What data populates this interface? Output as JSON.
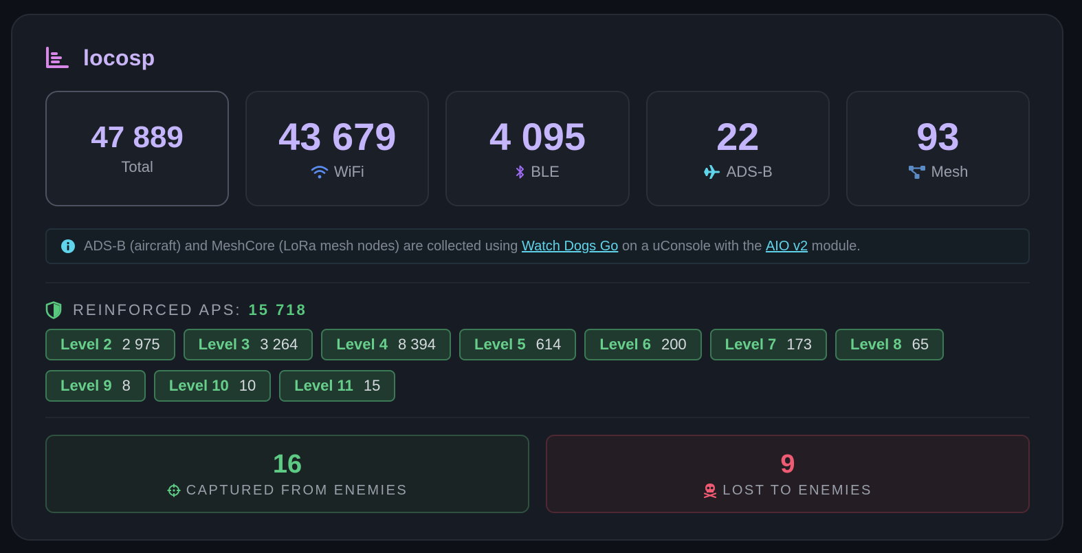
{
  "header": {
    "title": "locosp",
    "icon": "bar-chart-icon"
  },
  "stats": [
    {
      "key": "total",
      "value": "47 889",
      "label": "Total"
    },
    {
      "key": "wifi",
      "value": "43 679",
      "label": "WiFi",
      "icon": "wifi-icon",
      "color": "#5b8df0"
    },
    {
      "key": "ble",
      "value": "4 095",
      "label": "BLE",
      "icon": "bluetooth-icon",
      "color": "#9d6cf2"
    },
    {
      "key": "adsb",
      "value": "22",
      "label": "ADS-B",
      "icon": "plane-icon",
      "color": "#5fd4ea"
    },
    {
      "key": "mesh",
      "value": "93",
      "label": "Mesh",
      "icon": "network-icon",
      "color": "#5b8bc4"
    }
  ],
  "info": {
    "text_before": "ADS-B (aircraft) and MeshCore (LoRa mesh nodes) are collected using ",
    "link1": "Watch Dogs Go",
    "text_middle": " on a uConsole with the ",
    "link2": "AIO v2",
    "text_after": " module."
  },
  "reinforced": {
    "label": "REINFORCED APS:",
    "count": "15 718",
    "levels": [
      {
        "name": "Level 2",
        "value": "2 975"
      },
      {
        "name": "Level 3",
        "value": "3 264"
      },
      {
        "name": "Level 4",
        "value": "8 394"
      },
      {
        "name": "Level 5",
        "value": "614"
      },
      {
        "name": "Level 6",
        "value": "200"
      },
      {
        "name": "Level 7",
        "value": "173"
      },
      {
        "name": "Level 8",
        "value": "65"
      },
      {
        "name": "Level 9",
        "value": "8"
      },
      {
        "name": "Level 10",
        "value": "10"
      },
      {
        "name": "Level 11",
        "value": "15"
      }
    ]
  },
  "enemies": {
    "captured": {
      "value": "16",
      "label": "CAPTURED FROM ENEMIES",
      "icon": "crosshair-icon",
      "color": "#5ecb84"
    },
    "lost": {
      "value": "9",
      "label": "LOST TO ENEMIES",
      "icon": "skull-icon",
      "color": "#ee5b72"
    }
  },
  "colors": {
    "accent": "#c4b5fd",
    "green": "#59c87f",
    "red": "#ee5b72",
    "link": "#5fd4ea",
    "background": "#171b23"
  }
}
